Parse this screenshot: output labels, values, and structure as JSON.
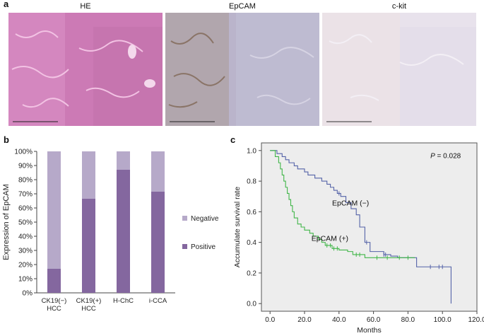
{
  "panel_a": {
    "letter": "a",
    "stains": [
      "HE",
      "EpCAM",
      "c-kit"
    ],
    "colors": {
      "HE": "#cf7fb8",
      "EpCAM": "#b7b2c9",
      "c-kit": "#e7e1ec"
    }
  },
  "chart_data": [
    {
      "type": "bar",
      "panel": "b",
      "stacked": true,
      "ylabel": "Expression of EpCAM",
      "ylim": [
        0,
        100
      ],
      "yticks": [
        "0%",
        "10%",
        "20%",
        "30%",
        "40%",
        "50%",
        "60%",
        "70%",
        "80%",
        "90%",
        "100%"
      ],
      "categories": [
        [
          "CK19(−)",
          "HCC"
        ],
        [
          "CK19(+)",
          "HCC"
        ],
        [
          "H-ChC"
        ],
        [
          "i-CCA"
        ]
      ],
      "series": [
        {
          "name": "Positive",
          "color": "#84679f",
          "values": [
            17,
            66.5,
            87,
            71.5
          ]
        },
        {
          "name": "Negative",
          "color": "#b6a9c9",
          "values": [
            83,
            33.5,
            13,
            28.5
          ]
        }
      ],
      "legend": "right",
      "legend_order": [
        "Negative",
        "Positive"
      ]
    },
    {
      "type": "line",
      "step": true,
      "panel": "c",
      "xlabel": "Months",
      "ylabel": "Accumulate survival rate",
      "xlim": [
        -5,
        120
      ],
      "ylim": [
        -0.05,
        1.05
      ],
      "xticks": [
        "0.0",
        "20.0",
        "40.0",
        "60.0",
        "80.0",
        "100.0",
        "120.0"
      ],
      "yticks": [
        "0.0",
        "0.2",
        "0.4",
        "0.6",
        "0.8",
        "1.0"
      ],
      "annotation": {
        "prefix": "P",
        "text": " = 0.028"
      },
      "series": [
        {
          "name": "EpCAM (−)",
          "color": "#5563a8",
          "x": [
            0,
            4,
            7,
            9,
            11,
            14,
            16,
            20,
            22,
            26,
            30,
            33,
            35,
            37,
            39,
            41,
            44,
            47,
            50,
            52,
            55,
            58,
            66,
            70,
            74,
            83,
            85,
            95,
            105
          ],
          "y": [
            1.0,
            0.98,
            0.96,
            0.94,
            0.92,
            0.9,
            0.88,
            0.86,
            0.84,
            0.82,
            0.8,
            0.78,
            0.76,
            0.74,
            0.72,
            0.7,
            0.66,
            0.62,
            0.58,
            0.5,
            0.4,
            0.34,
            0.32,
            0.31,
            0.3,
            0.3,
            0.24,
            0.24,
            0.0
          ],
          "censored_x": [
            40,
            56,
            66,
            67,
            93,
            98,
            100
          ]
        },
        {
          "name": "EpCAM (+)",
          "color": "#41b649",
          "x": [
            0,
            3,
            5,
            6,
            7,
            8,
            9,
            10,
            11,
            12,
            13,
            14,
            16,
            18,
            20,
            23,
            25,
            28,
            30,
            32,
            36,
            40,
            45,
            48,
            55,
            84
          ],
          "y": [
            1.0,
            0.96,
            0.92,
            0.88,
            0.84,
            0.8,
            0.76,
            0.72,
            0.68,
            0.64,
            0.6,
            0.56,
            0.52,
            0.5,
            0.48,
            0.46,
            0.44,
            0.42,
            0.4,
            0.38,
            0.36,
            0.35,
            0.34,
            0.32,
            0.3,
            0.3
          ],
          "censored_x": [
            33,
            35,
            37,
            39,
            50,
            52,
            62,
            68,
            75,
            80
          ]
        }
      ]
    }
  ]
}
